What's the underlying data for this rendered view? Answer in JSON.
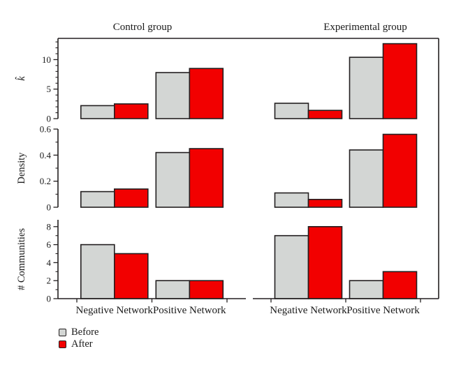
{
  "figure": {
    "background": "#ffffff",
    "text_color": "#1a1a1a",
    "axis_color": "#231f20",
    "legend": {
      "items": [
        {
          "label": "Before",
          "color": "#d3d6d4"
        },
        {
          "label": "After",
          "color": "#f20000"
        }
      ]
    }
  },
  "chart_data": {
    "type": "bar",
    "layout": "2 columns (groups) x 3 rows (metrics), shared category x-axis, legend bottom-left",
    "columns": [
      "Control group",
      "Experimental group"
    ],
    "categories": [
      "Negative Network",
      "Positive Network"
    ],
    "series_names": [
      "Before",
      "After"
    ],
    "series_colors": {
      "Before": "#d3d6d4",
      "After": "#f20000"
    },
    "bar_outline_color": "#231f20",
    "rows": [
      {
        "ylabel": "k̂",
        "ylabel_italic": true,
        "yticks": [
          0,
          5,
          10
        ],
        "ytick_labels": [
          "0",
          "5",
          "10"
        ],
        "minor_step": 1,
        "ylim": [
          0,
          13.6
        ]
      },
      {
        "ylabel": "Density",
        "ylabel_italic": false,
        "yticks": [
          0,
          0.2,
          0.4,
          0.6
        ],
        "ytick_labels": [
          "0",
          "0.2",
          "0.4",
          "0.6"
        ],
        "minor_step": 0.1,
        "ylim": [
          0,
          0.6
        ]
      },
      {
        "ylabel": "# Communities",
        "ylabel_italic": false,
        "yticks": [
          0,
          2,
          4,
          6,
          8
        ],
        "ytick_labels": [
          "0",
          "2",
          "4",
          "6",
          "8"
        ],
        "minor_step": 1,
        "ylim": [
          0,
          8.76
        ]
      }
    ],
    "panels": [
      {
        "column": "Control group",
        "row": "k̂",
        "series": [
          {
            "name": "Before",
            "values": [
              2.2,
              7.8
            ]
          },
          {
            "name": "After",
            "values": [
              2.5,
              8.5
            ]
          }
        ]
      },
      {
        "column": "Experimental group",
        "row": "k̂",
        "series": [
          {
            "name": "Before",
            "values": [
              2.6,
              10.4
            ]
          },
          {
            "name": "After",
            "values": [
              1.4,
              12.7
            ]
          }
        ]
      },
      {
        "column": "Control group",
        "row": "Density",
        "series": [
          {
            "name": "Before",
            "values": [
              0.12,
              0.42
            ]
          },
          {
            "name": "After",
            "values": [
              0.14,
              0.45
            ]
          }
        ]
      },
      {
        "column": "Experimental group",
        "row": "Density",
        "series": [
          {
            "name": "Before",
            "values": [
              0.11,
              0.44
            ]
          },
          {
            "name": "After",
            "values": [
              0.06,
              0.56
            ]
          }
        ]
      },
      {
        "column": "Control group",
        "row": "# Communities",
        "series": [
          {
            "name": "Before",
            "values": [
              6,
              2
            ]
          },
          {
            "name": "After",
            "values": [
              5,
              2
            ]
          }
        ]
      },
      {
        "column": "Experimental group",
        "row": "# Communities",
        "series": [
          {
            "name": "Before",
            "values": [
              7,
              2
            ]
          },
          {
            "name": "After",
            "values": [
              8,
              3
            ]
          }
        ]
      }
    ]
  }
}
